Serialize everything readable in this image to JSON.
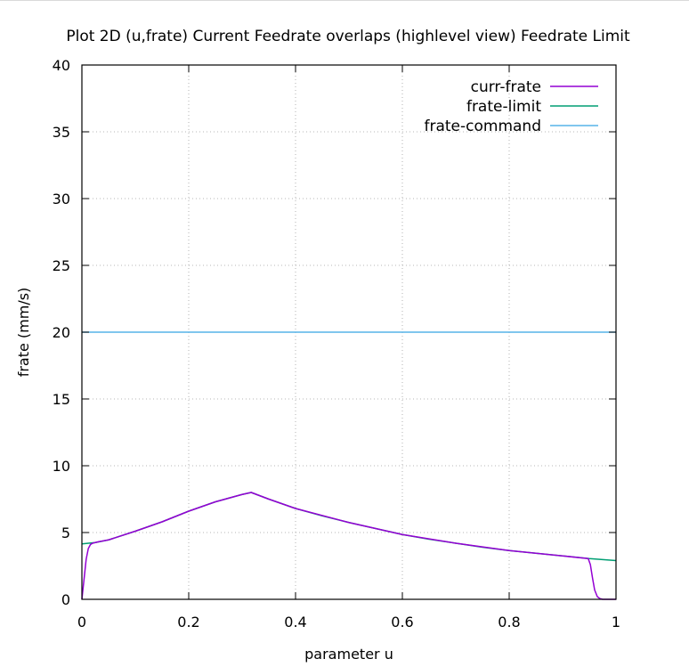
{
  "chart_data": {
    "type": "line",
    "title": "Plot 2D (u,frate) Current Feedrate overlaps (highlevel view) Feedrate Limit",
    "xlabel": "parameter u",
    "ylabel": "frate (mm/s)",
    "xlim": [
      0,
      1
    ],
    "ylim": [
      0,
      40
    ],
    "xticks": [
      0,
      0.2,
      0.4,
      0.6,
      0.8,
      1
    ],
    "xtick_labels": [
      "0",
      "0.2",
      "0.4",
      "0.6",
      "0.8",
      "1"
    ],
    "yticks": [
      0,
      5,
      10,
      15,
      20,
      25,
      30,
      35,
      40
    ],
    "ytick_labels": [
      "0",
      "5",
      "10",
      "15",
      "20",
      "25",
      "30",
      "35",
      "40"
    ],
    "grid": true,
    "legend_position": "top-right",
    "series": [
      {
        "name": "curr-frate",
        "color": "#9400d3",
        "x": [
          0,
          0.004,
          0.008,
          0.012,
          0.016,
          0.02,
          0.025,
          0.03,
          0.05,
          0.1,
          0.15,
          0.2,
          0.25,
          0.3,
          0.317,
          0.35,
          0.4,
          0.5,
          0.6,
          0.7,
          0.8,
          0.9,
          0.948,
          0.952,
          0.956,
          0.96,
          0.965,
          0.97,
          0.975,
          0.98,
          0.99,
          1.0
        ],
        "y": [
          0,
          1.5,
          3.0,
          3.8,
          4.1,
          4.2,
          4.25,
          4.3,
          4.45,
          5.1,
          5.8,
          6.6,
          7.3,
          7.85,
          8.0,
          7.5,
          6.8,
          5.75,
          4.85,
          4.2,
          3.65,
          3.25,
          3.05,
          2.6,
          1.6,
          0.7,
          0.2,
          0.05,
          0.0,
          0.0,
          0.0,
          0.0
        ]
      },
      {
        "name": "frate-limit",
        "color": "#009e73",
        "x": [
          0,
          0.025,
          0.05,
          0.1,
          0.15,
          0.2,
          0.25,
          0.3,
          0.317,
          0.35,
          0.4,
          0.45,
          0.5,
          0.55,
          0.6,
          0.65,
          0.7,
          0.75,
          0.8,
          0.85,
          0.9,
          0.95,
          1.0
        ],
        "y": [
          4.15,
          4.25,
          4.45,
          5.1,
          5.8,
          6.6,
          7.3,
          7.85,
          8.0,
          7.5,
          6.8,
          6.25,
          5.75,
          5.3,
          4.85,
          4.5,
          4.2,
          3.9,
          3.65,
          3.45,
          3.25,
          3.05,
          2.9
        ]
      },
      {
        "name": "frate-command",
        "color": "#56b4e9",
        "x": [
          0,
          1
        ],
        "y": [
          20,
          20
        ]
      }
    ]
  }
}
